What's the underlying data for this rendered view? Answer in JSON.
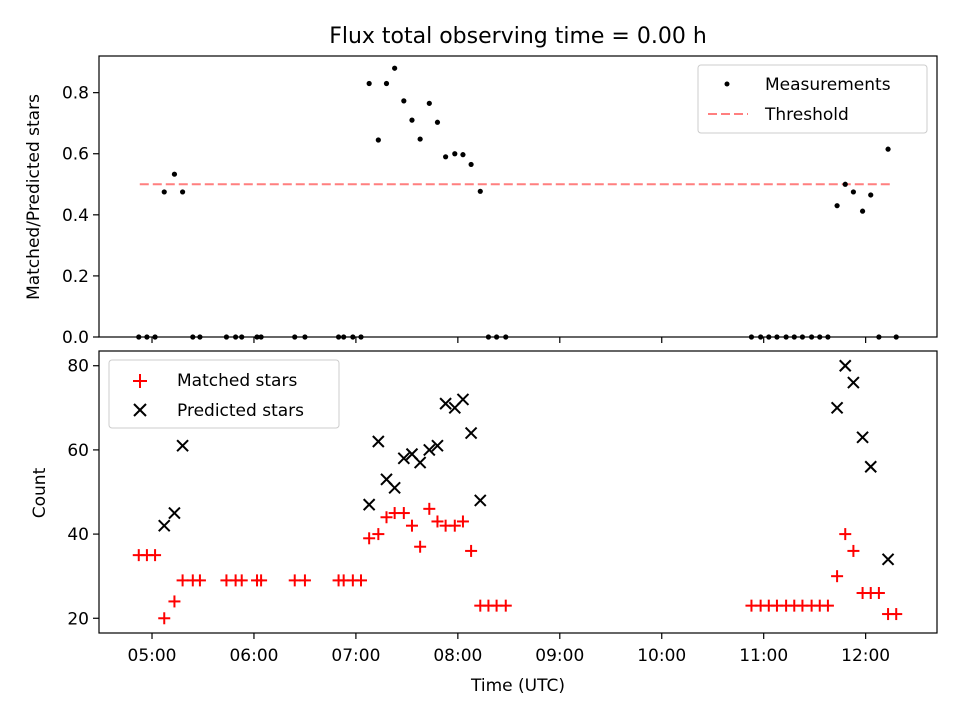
{
  "chart_data": [
    {
      "type": "scatter",
      "title": "Flux total observing time = 0.00 h",
      "xlabel": "",
      "ylabel": "Matched/Predicted stars",
      "ylim": [
        0,
        0.92
      ],
      "yticks": [
        0.0,
        0.2,
        0.4,
        0.6,
        0.8
      ],
      "ytick_labels": [
        "0.0",
        "0.2",
        "0.4",
        "0.6",
        "0.8"
      ],
      "threshold": {
        "value": 0.5,
        "x_range": [
          4.88,
          12.25
        ],
        "color": "#ff7f7f"
      },
      "legend": {
        "position": "top-right",
        "entries": [
          "Measurements",
          "Threshold"
        ]
      },
      "series": [
        {
          "name": "Measurements",
          "color": "#000000",
          "points": [
            [
              4.87,
              0
            ],
            [
              4.95,
              0
            ],
            [
              5.03,
              0
            ],
            [
              5.12,
              0.475
            ],
            [
              5.22,
              0.533
            ],
            [
              5.3,
              0.475
            ],
            [
              5.4,
              0
            ],
            [
              5.47,
              0
            ],
            [
              5.73,
              0
            ],
            [
              5.82,
              0
            ],
            [
              5.88,
              0
            ],
            [
              6.03,
              0
            ],
            [
              6.07,
              0
            ],
            [
              6.4,
              0
            ],
            [
              6.5,
              0
            ],
            [
              6.83,
              0
            ],
            [
              6.88,
              0
            ],
            [
              6.97,
              0
            ],
            [
              7.05,
              0
            ],
            [
              7.13,
              0.83
            ],
            [
              7.22,
              0.645
            ],
            [
              7.3,
              0.83
            ],
            [
              7.38,
              0.88
            ],
            [
              7.47,
              0.773
            ],
            [
              7.55,
              0.71
            ],
            [
              7.63,
              0.648
            ],
            [
              7.72,
              0.765
            ],
            [
              7.8,
              0.703
            ],
            [
              7.88,
              0.59
            ],
            [
              7.97,
              0.6
            ],
            [
              8.05,
              0.597
            ],
            [
              8.13,
              0.565
            ],
            [
              8.22,
              0.477
            ],
            [
              8.3,
              0
            ],
            [
              8.38,
              0
            ],
            [
              8.47,
              0
            ],
            [
              10.88,
              0
            ],
            [
              10.97,
              0
            ],
            [
              11.05,
              0
            ],
            [
              11.13,
              0
            ],
            [
              11.22,
              0
            ],
            [
              11.3,
              0
            ],
            [
              11.38,
              0
            ],
            [
              11.47,
              0
            ],
            [
              11.55,
              0
            ],
            [
              11.63,
              0
            ],
            [
              11.72,
              0.43
            ],
            [
              11.8,
              0.5
            ],
            [
              11.88,
              0.475
            ],
            [
              11.97,
              0.412
            ],
            [
              12.05,
              0.465
            ],
            [
              12.13,
              0
            ],
            [
              12.22,
              0.615
            ],
            [
              12.3,
              0
            ]
          ]
        }
      ]
    },
    {
      "type": "scatter",
      "title": "",
      "xlabel": "Time (UTC)",
      "ylabel": "Count",
      "xlim": [
        4.48,
        12.7
      ],
      "xticks": [
        5,
        6,
        7,
        8,
        9,
        10,
        11,
        12
      ],
      "xtick_labels": [
        "05:00",
        "06:00",
        "07:00",
        "08:00",
        "09:00",
        "10:00",
        "11:00",
        "12:00"
      ],
      "ylim": [
        16.5,
        83.5
      ],
      "yticks": [
        20,
        40,
        60,
        80
      ],
      "ytick_labels": [
        "20",
        "40",
        "60",
        "80"
      ],
      "legend": {
        "position": "top-left",
        "entries": [
          "Matched stars",
          "Predicted stars"
        ]
      },
      "series": [
        {
          "name": "Matched stars",
          "marker": "plus",
          "color": "#ff0000",
          "points": [
            [
              4.87,
              35
            ],
            [
              4.95,
              35
            ],
            [
              5.03,
              35
            ],
            [
              5.12,
              20
            ],
            [
              5.22,
              24
            ],
            [
              5.3,
              29
            ],
            [
              5.4,
              29
            ],
            [
              5.47,
              29
            ],
            [
              5.73,
              29
            ],
            [
              5.82,
              29
            ],
            [
              5.88,
              29
            ],
            [
              6.03,
              29
            ],
            [
              6.07,
              29
            ],
            [
              6.4,
              29
            ],
            [
              6.5,
              29
            ],
            [
              6.83,
              29
            ],
            [
              6.88,
              29
            ],
            [
              6.97,
              29
            ],
            [
              7.05,
              29
            ],
            [
              7.13,
              39
            ],
            [
              7.22,
              40
            ],
            [
              7.3,
              44
            ],
            [
              7.38,
              45
            ],
            [
              7.47,
              45
            ],
            [
              7.55,
              42
            ],
            [
              7.63,
              37
            ],
            [
              7.72,
              46
            ],
            [
              7.8,
              43
            ],
            [
              7.88,
              42
            ],
            [
              7.97,
              42
            ],
            [
              8.05,
              43
            ],
            [
              8.13,
              36
            ],
            [
              8.22,
              23
            ],
            [
              8.3,
              23
            ],
            [
              8.38,
              23
            ],
            [
              8.47,
              23
            ],
            [
              10.88,
              23
            ],
            [
              10.97,
              23
            ],
            [
              11.05,
              23
            ],
            [
              11.13,
              23
            ],
            [
              11.22,
              23
            ],
            [
              11.3,
              23
            ],
            [
              11.38,
              23
            ],
            [
              11.47,
              23
            ],
            [
              11.55,
              23
            ],
            [
              11.63,
              23
            ],
            [
              11.72,
              30
            ],
            [
              11.8,
              40
            ],
            [
              11.88,
              36
            ],
            [
              11.97,
              26
            ],
            [
              12.05,
              26
            ],
            [
              12.13,
              26
            ],
            [
              12.22,
              21
            ],
            [
              12.3,
              21
            ]
          ]
        },
        {
          "name": "Predicted stars",
          "marker": "x",
          "color": "#000000",
          "points": [
            [
              5.12,
              42
            ],
            [
              5.22,
              45
            ],
            [
              5.3,
              61
            ],
            [
              7.13,
              47
            ],
            [
              7.22,
              62
            ],
            [
              7.3,
              53
            ],
            [
              7.38,
              51
            ],
            [
              7.47,
              58
            ],
            [
              7.55,
              59
            ],
            [
              7.63,
              57
            ],
            [
              7.72,
              60
            ],
            [
              7.8,
              61
            ],
            [
              7.88,
              71
            ],
            [
              7.97,
              70
            ],
            [
              8.05,
              72
            ],
            [
              8.13,
              64
            ],
            [
              8.22,
              48
            ],
            [
              11.72,
              70
            ],
            [
              11.8,
              80
            ],
            [
              11.88,
              76
            ],
            [
              11.97,
              63
            ],
            [
              12.05,
              56
            ],
            [
              12.22,
              34
            ]
          ]
        }
      ]
    }
  ]
}
